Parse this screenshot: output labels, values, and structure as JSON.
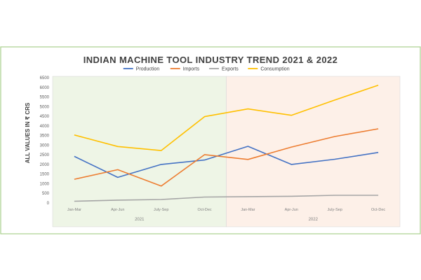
{
  "chart_data": {
    "type": "line",
    "title": "INDIAN MACHINE TOOL INDUSTRY TREND 2021 & 2022",
    "ylabel": "ALL VALUES IN ₹ CRS",
    "xlabel": "",
    "ylim": [
      0,
      6500
    ],
    "yticks": [
      0,
      500,
      1000,
      1500,
      2000,
      2500,
      3000,
      3500,
      4000,
      4500,
      5000,
      5500,
      6000,
      6500
    ],
    "categories": [
      "Jan-Mar",
      "Apr-Jun",
      "July-Sep",
      "Oct-Dec",
      "Jan-Mar",
      "Apr-Jun",
      "July-Sep",
      "Oct-Dec"
    ],
    "groups": [
      {
        "label": "2021",
        "color": "#eef5e6"
      },
      {
        "label": "2022",
        "color": "#fdf0e8"
      }
    ],
    "grid": false,
    "legend_position": "top",
    "series": [
      {
        "name": "Production",
        "color": "#4472c4",
        "values": [
          2420,
          1330,
          2000,
          2230,
          2940,
          2000,
          2270,
          2620
        ]
      },
      {
        "name": "Imports",
        "color": "#ed7d31",
        "values": [
          1230,
          1730,
          880,
          2510,
          2260,
          2900,
          3450,
          3850
        ]
      },
      {
        "name": "Exports",
        "color": "#a5a5a5",
        "values": [
          90,
          150,
          180,
          310,
          330,
          350,
          400,
          400
        ]
      },
      {
        "name": "Consumption",
        "color": "#ffc000",
        "values": [
          3530,
          2930,
          2720,
          4480,
          4880,
          4550,
          5340,
          6110
        ]
      }
    ]
  }
}
